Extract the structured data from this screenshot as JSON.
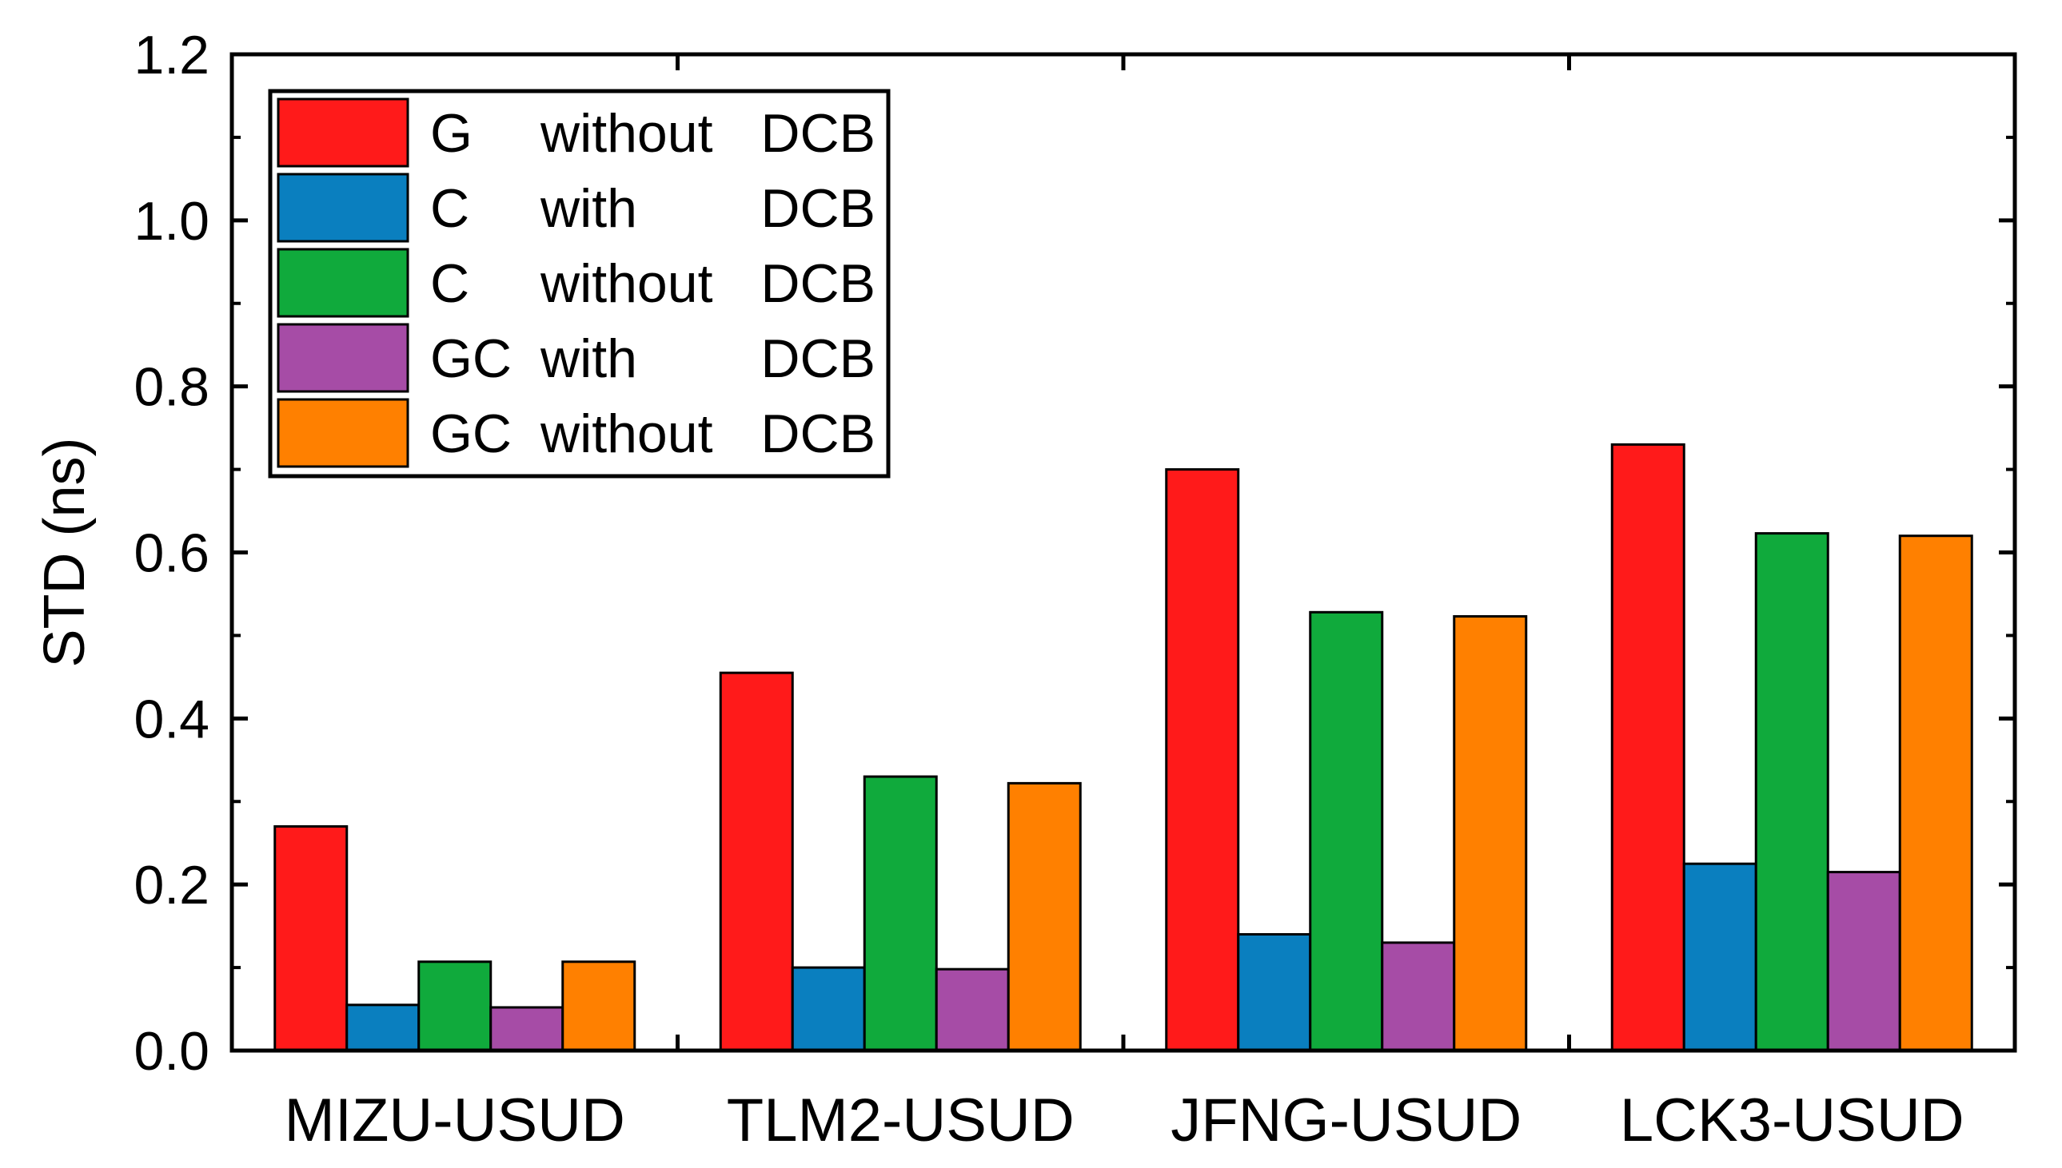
{
  "chart_data": {
    "type": "bar",
    "title": "",
    "xlabel": "",
    "ylabel": "STD (ns)",
    "ylim": [
      0,
      1.2
    ],
    "yticks": [
      "0.0",
      "0.2",
      "0.4",
      "0.6",
      "0.8",
      "1.0",
      "1.2"
    ],
    "categories": [
      "MIZU-USUD",
      "TLM2-USUD",
      "JFNG-USUD",
      "LCK3-USUD"
    ],
    "series": [
      {
        "name": "G without DCB",
        "legend_parts": [
          "G",
          "without",
          "DCB"
        ],
        "color": "#ff1a1a",
        "values": [
          0.27,
          0.455,
          0.7,
          0.73
        ]
      },
      {
        "name": "C with DCB",
        "legend_parts": [
          "C",
          "with",
          "DCB"
        ],
        "color": "#0a7fbf",
        "values": [
          0.055,
          0.1,
          0.14,
          0.225
        ]
      },
      {
        "name": "C without DCB",
        "legend_parts": [
          "C",
          "without",
          "DCB"
        ],
        "color": "#10aa3c",
        "values": [
          0.107,
          0.33,
          0.528,
          0.623
        ]
      },
      {
        "name": "GC with DCB",
        "legend_parts": [
          "GC",
          "with",
          "DCB"
        ],
        "color": "#a64ca6",
        "values": [
          0.052,
          0.098,
          0.13,
          0.215
        ]
      },
      {
        "name": "GC without DCB",
        "legend_parts": [
          "GC",
          "without",
          "DCB"
        ],
        "color": "#ff8000",
        "values": [
          0.107,
          0.322,
          0.523,
          0.62
        ]
      }
    ],
    "grid": false,
    "legend_position": "top-left"
  }
}
